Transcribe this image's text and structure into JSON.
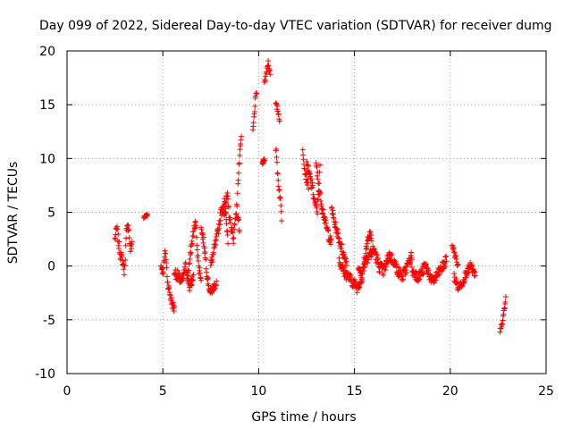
{
  "chart_data": {
    "type": "scatter",
    "title": "Day 099 of 2022, Sidereal Day-to-day VTEC variation (SDTVAR) for receiver dumg",
    "xlabel": "GPS time / hours",
    "ylabel": "SDTVAR / TECUs",
    "xlim": [
      0,
      25
    ],
    "ylim": [
      -10,
      20
    ],
    "xticks": [
      0,
      5,
      10,
      15,
      20,
      25
    ],
    "yticks": [
      -10,
      -5,
      0,
      5,
      10,
      15,
      20
    ],
    "xtick_labels": [
      "0",
      "5",
      "10",
      "15",
      "20",
      "25"
    ],
    "ytick_labels": [
      "-10",
      "-5",
      "0",
      "5",
      "10",
      "15",
      "20"
    ],
    "grid": true,
    "marker": "+",
    "color": "#ff0000",
    "series": [
      {
        "name": "SDTVAR",
        "clusters": [
          {
            "x0": 2.5,
            "x1": 3.4,
            "y": [
              2.5,
              3.5,
              2.0,
              1.0,
              0.5,
              -0.5,
              3.0,
              4.0,
              1.5,
              2.2
            ],
            "spread": 1.0
          },
          {
            "x0": 4.0,
            "x1": 4.2,
            "y": [
              4.5,
              4.8
            ],
            "spread": 0.3
          },
          {
            "x0": 4.9,
            "x1": 5.6,
            "y": [
              0.0,
              -0.5,
              1.5,
              -1.5,
              -2.5,
              -3.5,
              -4.0
            ],
            "spread": 0.8
          },
          {
            "x0": 5.6,
            "x1": 6.6,
            "y": [
              -0.5,
              -1.0,
              -1.5,
              0.0,
              -2.0,
              -1.0
            ],
            "spread": 1.0
          },
          {
            "x0": 6.3,
            "x1": 7.0,
            "y": [
              -1.0,
              1.0,
              3.0,
              4.0,
              0.0,
              -1.0
            ],
            "spread": 1.0
          },
          {
            "x0": 7.0,
            "x1": 7.8,
            "y": [
              3.5,
              2.0,
              -1.0,
              -2.5,
              -2.0,
              -1.5
            ],
            "spread": 0.8
          },
          {
            "x0": 7.5,
            "x1": 8.4,
            "y": [
              0.0,
              1.5,
              3.0,
              5.0,
              6.0,
              2.5
            ],
            "spread": 1.0
          },
          {
            "x0": 8.2,
            "x1": 9.0,
            "y": [
              5.0,
              6.5,
              4.0,
              2.5,
              5.5,
              3.5
            ],
            "spread": 1.0
          },
          {
            "x0": 8.9,
            "x1": 9.1,
            "y": [
              7.0,
              10.0,
              12.0
            ],
            "spread": 0.6
          },
          {
            "x0": 9.7,
            "x1": 9.9,
            "y": [
              12.5,
              14.0,
              15.5,
              16.2
            ],
            "spread": 0.5
          },
          {
            "x0": 10.2,
            "x1": 10.3,
            "y": [
              9.5,
              10.0
            ],
            "spread": 0.3
          },
          {
            "x0": 10.3,
            "x1": 10.6,
            "y": [
              17.0,
              18.0,
              19.0,
              17.8
            ],
            "spread": 0.5
          },
          {
            "x0": 10.9,
            "x1": 11.1,
            "y": [
              15.0,
              14.5,
              13.5
            ],
            "spread": 0.5
          },
          {
            "x0": 10.9,
            "x1": 11.2,
            "y": [
              11.0,
              9.5,
              8.0,
              7.0,
              6.0,
              4.5
            ],
            "spread": 0.8
          },
          {
            "x0": 12.3,
            "x1": 12.6,
            "y": [
              11.0,
              9.0,
              8.0,
              7.5
            ],
            "spread": 0.7
          },
          {
            "x0": 12.5,
            "x1": 13.2,
            "y": [
              9.5,
              8.5,
              7.5,
              6.0,
              5.0,
              9.0
            ],
            "spread": 1.0
          },
          {
            "x0": 13.0,
            "x1": 13.8,
            "y": [
              9.5,
              7.0,
              5.5,
              4.0,
              3.0,
              2.0
            ],
            "spread": 1.0
          },
          {
            "x0": 13.8,
            "x1": 14.6,
            "y": [
              5.5,
              4.0,
              3.0,
              2.0,
              1.0,
              0.5
            ],
            "spread": 0.9
          },
          {
            "x0": 14.2,
            "x1": 15.4,
            "y": [
              0.5,
              -0.5,
              -1.0,
              -1.5,
              -2.0,
              -1.0
            ],
            "spread": 1.0
          },
          {
            "x0": 15.2,
            "x1": 15.9,
            "y": [
              0.0,
              -1.0,
              0.5,
              3.0,
              2.8
            ],
            "spread": 1.0
          },
          {
            "x0": 15.5,
            "x1": 16.8,
            "y": [
              0.5,
              1.0,
              1.5,
              0.0,
              -0.5,
              1.0
            ],
            "spread": 1.1
          },
          {
            "x0": 16.8,
            "x1": 18.0,
            "y": [
              1.0,
              0.5,
              -0.5,
              -1.0,
              0.0,
              1.0
            ],
            "spread": 1.0
          },
          {
            "x0": 18.0,
            "x1": 19.8,
            "y": [
              -0.5,
              -1.0,
              0.0,
              -1.5,
              -0.5,
              0.5
            ],
            "spread": 1.0
          },
          {
            "x0": 20.1,
            "x1": 20.4,
            "y": [
              2.0,
              1.0,
              0.0
            ],
            "spread": 0.6
          },
          {
            "x0": 20.2,
            "x1": 21.3,
            "y": [
              -1.0,
              -2.0,
              -1.5,
              -0.5,
              0.0,
              -1.0
            ],
            "spread": 0.8
          },
          {
            "x0": 22.6,
            "x1": 22.9,
            "y": [
              -6.2,
              -5.5,
              -5.0,
              -4.0,
              -3.0
            ],
            "spread": 0.5
          }
        ]
      }
    ]
  }
}
